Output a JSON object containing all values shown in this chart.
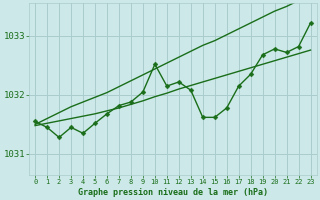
{
  "title": "Graphe pression niveau de la mer (hPa)",
  "background_color": "#cce8e8",
  "grid_color": "#aacccc",
  "line_color": "#1a6e1a",
  "text_color": "#1a6e1a",
  "xlim": [
    -0.5,
    23.5
  ],
  "ylim": [
    1030.65,
    1033.55
  ],
  "yticks": [
    1031,
    1032,
    1033
  ],
  "xticks": [
    0,
    1,
    2,
    3,
    4,
    5,
    6,
    7,
    8,
    9,
    10,
    11,
    12,
    13,
    14,
    15,
    16,
    17,
    18,
    19,
    20,
    21,
    22,
    23
  ],
  "x": [
    0,
    1,
    2,
    3,
    4,
    5,
    6,
    7,
    8,
    9,
    10,
    11,
    12,
    13,
    14,
    15,
    16,
    17,
    18,
    19,
    20,
    21,
    22,
    23
  ],
  "y_main": [
    1031.55,
    1031.45,
    1031.28,
    1031.45,
    1031.35,
    1031.52,
    1031.68,
    1031.82,
    1031.88,
    1032.05,
    1032.52,
    1032.15,
    1032.22,
    1032.08,
    1031.62,
    1031.62,
    1031.78,
    1032.15,
    1032.35,
    1032.68,
    1032.78,
    1032.72,
    1032.82,
    1033.22
  ],
  "y_upper": [
    1031.5,
    1031.6,
    1031.7,
    1031.8,
    1031.88,
    1031.96,
    1032.04,
    1032.14,
    1032.24,
    1032.34,
    1032.44,
    1032.54,
    1032.64,
    1032.74,
    1032.84,
    1032.92,
    1033.02,
    1033.12,
    1033.22,
    1033.32,
    1033.42,
    1033.5,
    1033.6,
    1033.7
  ],
  "y_lower": [
    1031.48,
    1031.52,
    1031.56,
    1031.6,
    1031.64,
    1031.68,
    1031.73,
    1031.78,
    1031.84,
    1031.9,
    1031.97,
    1032.03,
    1032.1,
    1032.16,
    1032.22,
    1032.28,
    1032.34,
    1032.4,
    1032.46,
    1032.52,
    1032.58,
    1032.64,
    1032.7,
    1032.76
  ],
  "marker_size": 2.5,
  "linewidth": 1.0
}
